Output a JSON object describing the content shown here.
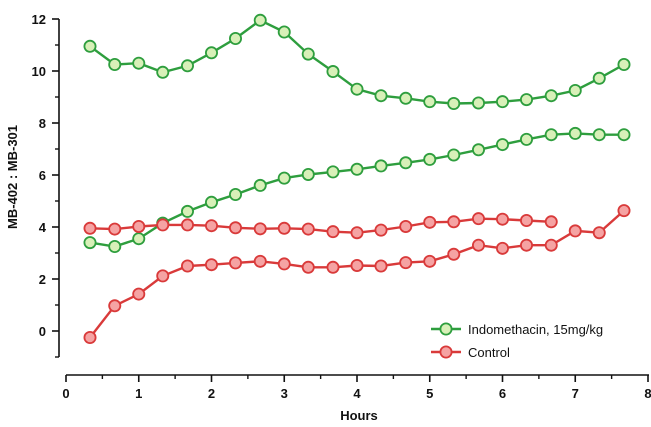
{
  "chart_data": {
    "type": "line",
    "xlabel": "Hours",
    "ylabel": "MB-402 : MB-301",
    "xlim": [
      0,
      8
    ],
    "ylim": [
      -1,
      12
    ],
    "x_ticks": [
      0,
      1,
      2,
      3,
      4,
      5,
      6,
      7,
      8
    ],
    "y_ticks": [
      0,
      2,
      4,
      6,
      8,
      10,
      12
    ],
    "grid": false,
    "legend_position": "bottom-right",
    "series": [
      {
        "name": "Indomethacin, 15mg/kg",
        "color": "#2e9e3e",
        "fill": "#d8f0b8",
        "curves": [
          {
            "x": [
              0.33,
              0.67,
              1.0,
              1.33,
              1.67,
              2.0,
              2.33,
              2.67,
              3.0,
              3.33,
              3.67,
              4.0,
              4.33,
              4.67,
              5.0,
              5.33,
              5.67,
              6.0,
              6.33,
              6.67,
              7.0,
              7.33,
              7.67
            ],
            "y": [
              10.95,
              10.25,
              10.3,
              9.95,
              10.2,
              10.7,
              11.25,
              11.95,
              11.5,
              10.65,
              9.98,
              9.3,
              9.05,
              8.95,
              8.82,
              8.75,
              8.77,
              8.82,
              8.9,
              9.05,
              9.25,
              9.72,
              10.25
            ]
          },
          {
            "x": [
              0.33,
              0.67,
              1.0,
              1.33,
              1.67,
              2.0,
              2.33,
              2.67,
              3.0,
              3.33,
              3.67,
              4.0,
              4.33,
              4.67,
              5.0,
              5.33,
              5.67,
              6.0,
              6.33,
              6.67,
              7.0,
              7.33,
              7.67
            ],
            "y": [
              3.4,
              3.25,
              3.55,
              4.15,
              4.6,
              4.95,
              5.25,
              5.6,
              5.88,
              6.02,
              6.12,
              6.22,
              6.35,
              6.47,
              6.6,
              6.77,
              6.97,
              7.17,
              7.37,
              7.55,
              7.6,
              7.55,
              7.55
            ]
          }
        ]
      },
      {
        "name": "Control",
        "color": "#d93a3a",
        "fill": "#f5a3a3",
        "curves": [
          {
            "x": [
              0.33,
              0.67,
              1.0,
              1.33,
              1.67,
              2.0,
              2.33,
              2.67,
              3.0,
              3.33,
              3.67,
              4.0,
              4.33,
              4.67,
              5.0,
              5.33,
              5.67,
              6.0,
              6.33,
              6.67
            ],
            "y": [
              3.95,
              3.92,
              4.02,
              4.08,
              4.08,
              4.05,
              3.97,
              3.93,
              3.95,
              3.92,
              3.82,
              3.78,
              3.88,
              4.02,
              4.18,
              4.2,
              4.32,
              4.3,
              4.25,
              4.2
            ]
          },
          {
            "x": [
              0.33,
              0.67,
              1.0,
              1.33,
              1.67,
              2.0,
              2.33,
              2.67,
              3.0,
              3.33,
              3.67,
              4.0,
              4.33,
              4.67,
              5.0,
              5.33,
              5.67,
              6.0,
              6.33,
              6.67,
              7.0,
              7.33,
              7.67
            ],
            "y": [
              -0.25,
              0.97,
              1.42,
              2.12,
              2.5,
              2.55,
              2.62,
              2.68,
              2.58,
              2.45,
              2.45,
              2.52,
              2.5,
              2.63,
              2.68,
              2.95,
              3.3,
              3.18,
              3.3,
              3.3,
              3.85,
              3.78,
              4.63
            ]
          }
        ]
      }
    ]
  }
}
